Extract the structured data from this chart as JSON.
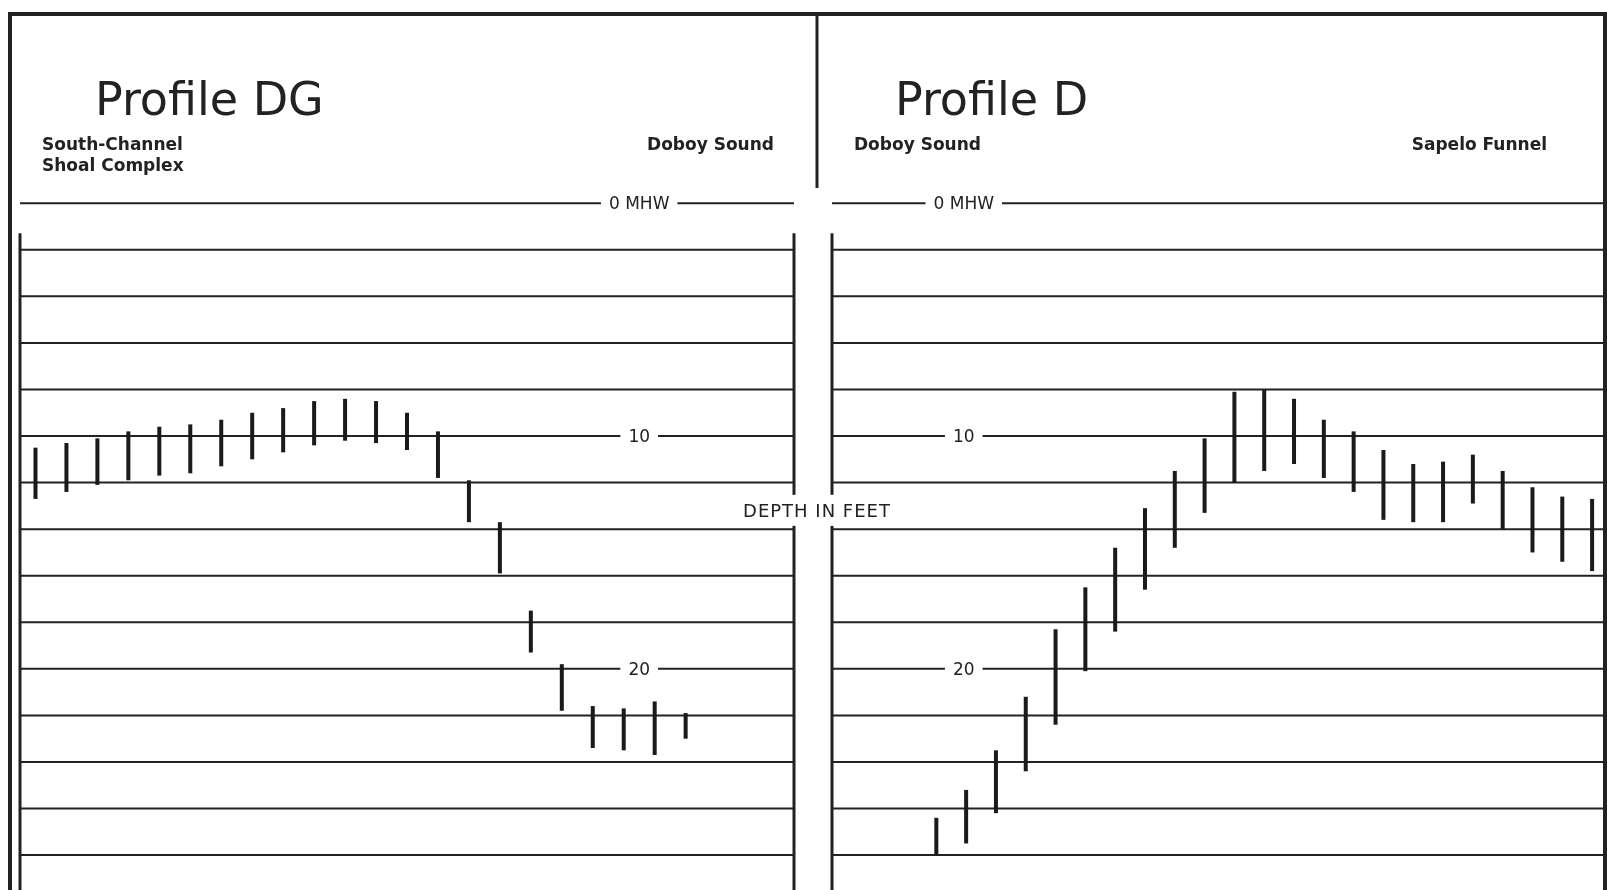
{
  "chart_data": [
    {
      "type": "bar",
      "title": "Profile DG",
      "ylabel": "DEPTH IN FEET",
      "annotations": [
        "South-Channel Shoal Complex",
        "Doboy Sound"
      ],
      "categories": [
        null,
        null,
        null,
        null,
        null,
        null,
        null,
        null,
        null,
        null,
        null,
        null,
        null,
        null,
        null,
        null,
        null,
        null,
        null,
        null,
        null,
        null,
        null,
        null,
        null
      ],
      "base": [
        10.5,
        10.3,
        10.1,
        9.8,
        9.6,
        9.5,
        9.3,
        9.0,
        8.8,
        8.5,
        8.4,
        8.5,
        9.0,
        9.8,
        11.9,
        13.7,
        17.5,
        19.8,
        21.6,
        21.7,
        21.4,
        21.9,
        null,
        null,
        null
      ],
      "values": [
        2.2,
        2.1,
        2.0,
        2.1,
        2.1,
        2.1,
        2.0,
        2.0,
        1.9,
        1.9,
        1.8,
        1.8,
        1.6,
        2.0,
        1.8,
        2.2,
        1.8,
        2.0,
        1.8,
        1.8,
        2.3,
        1.1,
        null,
        null,
        null
      ],
      "color": "#1a1a1a",
      "ylim": [
        29.5,
        -8
      ],
      "yticks": [
        {
          "value": 0,
          "label": "0 MHW"
        },
        {
          "value": 2,
          "label": null
        },
        {
          "value": 4,
          "label": null
        },
        {
          "value": 6,
          "label": null
        },
        {
          "value": 8,
          "label": null
        },
        {
          "value": 10,
          "label": "10"
        },
        {
          "value": 12,
          "label": null
        },
        {
          "value": 14,
          "label": null
        },
        {
          "value": 16,
          "label": null
        },
        {
          "value": 18,
          "label": null
        },
        {
          "value": 20,
          "label": "20"
        },
        {
          "value": 22,
          "label": null
        },
        {
          "value": 24,
          "label": null
        },
        {
          "value": 26,
          "label": null
        },
        {
          "value": 28,
          "label": null
        }
      ],
      "grid": "y",
      "tick_labels": "y"
    },
    {
      "type": "bar",
      "title": "Profile D",
      "annotations": [
        "Doboy Sound",
        "Sapelo Funnel"
      ],
      "categories": [
        null,
        null,
        null,
        null,
        null,
        null,
        null,
        null,
        null,
        null,
        null,
        null,
        null,
        null,
        null,
        null,
        null,
        null,
        null,
        null,
        null,
        null,
        null,
        null,
        null,
        null
      ],
      "base": [
        null,
        null,
        null,
        26.4,
        25.2,
        23.5,
        21.2,
        18.3,
        16.5,
        14.8,
        13.1,
        11.5,
        10.1,
        8.1,
        8.0,
        8.4,
        9.3,
        9.8,
        10.6,
        11.2,
        11.1,
        10.8,
        11.5,
        12.2,
        12.6,
        12.7
      ],
      "values": [
        null,
        null,
        null,
        1.6,
        2.3,
        2.7,
        3.2,
        4.1,
        3.6,
        3.6,
        3.5,
        3.3,
        3.2,
        3.9,
        3.5,
        2.8,
        2.5,
        2.6,
        3.0,
        2.5,
        2.6,
        2.1,
        2.5,
        2.8,
        2.8,
        3.1
      ],
      "color": "#1a1a1a",
      "ylim": [
        29.5,
        -8
      ],
      "yticks": [
        {
          "value": 0,
          "label": "0 MHW"
        },
        {
          "value": 2,
          "label": null
        },
        {
          "value": 4,
          "label": null
        },
        {
          "value": 6,
          "label": null
        },
        {
          "value": 8,
          "label": null
        },
        {
          "value": 10,
          "label": "10"
        },
        {
          "value": 12,
          "label": null
        },
        {
          "value": 14,
          "label": null
        },
        {
          "value": 16,
          "label": null
        },
        {
          "value": 18,
          "label": null
        },
        {
          "value": 20,
          "label": "20"
        },
        {
          "value": 22,
          "label": null
        },
        {
          "value": 24,
          "label": null
        },
        {
          "value": 26,
          "label": null
        },
        {
          "value": 28,
          "label": null
        }
      ],
      "grid": "y",
      "tick_labels": "y"
    }
  ]
}
